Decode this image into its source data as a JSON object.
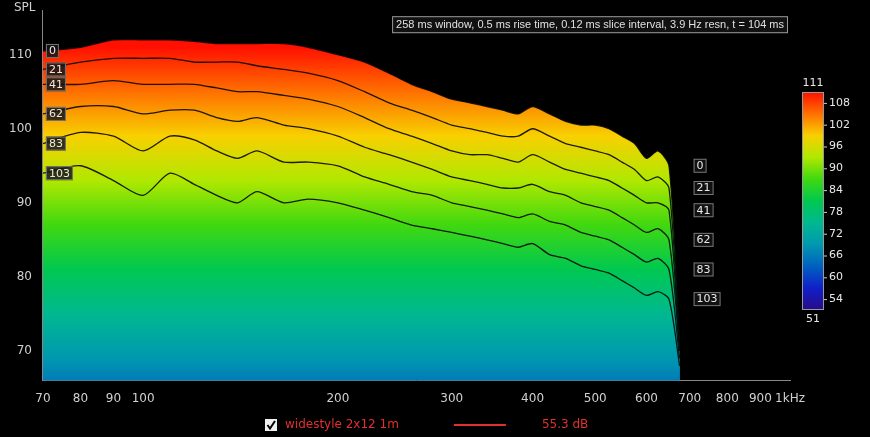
{
  "chart_data": {
    "type": "waterfall",
    "title": "258 ms window, 0.5 ms rise time, 0.12 ms slice interval, 3.9 Hz resn, t = 104 ms",
    "y_label": "SPL",
    "log": "x",
    "grid": false,
    "xlim": [
      70,
      1000
    ],
    "xticks": [
      70,
      80,
      90,
      100,
      200,
      300,
      400,
      500,
      600,
      700,
      800,
      900,
      {
        "value": 1000,
        "label": "1kHz"
      }
    ],
    "ylim": [
      66,
      116
    ],
    "yticks": [
      70,
      80,
      90,
      100,
      110
    ],
    "x": [
      70,
      80,
      90,
      100,
      110,
      120,
      130,
      140,
      150,
      165,
      180,
      200,
      220,
      240,
      260,
      280,
      300,
      320,
      340,
      360,
      380,
      400,
      425,
      450,
      475,
      500,
      525,
      550,
      575,
      600,
      625,
      650,
      675
    ],
    "slices": [
      {
        "t": 0,
        "values": [
          110.5,
          111,
          112,
          112,
          112,
          111.8,
          111.5,
          111.5,
          111.5,
          111.5,
          111,
          110,
          109,
          107.5,
          106,
          105,
          104,
          103.5,
          103,
          102.5,
          102,
          103,
          102,
          101,
          100.5,
          100.5,
          100,
          99,
          98,
          96,
          97,
          95,
          72
        ]
      },
      {
        "t": 21,
        "values": [
          108,
          109,
          109.5,
          109.5,
          109.5,
          109,
          109,
          109,
          108.5,
          108,
          107.5,
          106.5,
          105,
          103.5,
          102.5,
          101.5,
          100.5,
          100,
          99.5,
          99,
          99,
          100,
          99,
          98,
          97.5,
          97,
          96.5,
          95.5,
          94.5,
          93,
          93.5,
          92,
          71
        ]
      },
      {
        "t": 41,
        "values": [
          106,
          106,
          106.5,
          106,
          106,
          106,
          105.5,
          105,
          105,
          104.5,
          104,
          103,
          101.5,
          100,
          99,
          98,
          97,
          96.5,
          96.5,
          96,
          95.5,
          96.5,
          95.5,
          94.5,
          94,
          93.5,
          93,
          92,
          91,
          90,
          90,
          89,
          70
        ]
      },
      {
        "t": 62,
        "values": [
          102,
          103,
          103,
          102,
          102.5,
          102.5,
          101.5,
          101,
          101.5,
          100.5,
          100,
          99,
          97.5,
          96.5,
          95.5,
          94.5,
          93.5,
          93,
          92.5,
          92,
          92,
          92.5,
          91.5,
          91,
          90,
          89.5,
          89,
          88,
          87,
          86,
          86.5,
          85,
          70
        ]
      },
      {
        "t": 83,
        "values": [
          98,
          99.5,
          99,
          97,
          99,
          98.5,
          97,
          96,
          97,
          95.5,
          95.5,
          95,
          93.5,
          92.5,
          91.5,
          91,
          90,
          89.5,
          89,
          88.5,
          88,
          88.5,
          87.5,
          87,
          86,
          85.5,
          85,
          84,
          83,
          82,
          82.5,
          81,
          69
        ]
      },
      {
        "t": 103,
        "values": [
          94,
          95,
          93,
          91,
          94,
          92.5,
          91,
          90,
          91.5,
          90,
          90.5,
          90,
          89,
          88,
          87,
          86.5,
          86,
          85.5,
          85,
          84.5,
          84,
          84.5,
          83,
          82.5,
          81.5,
          81,
          80.5,
          79.5,
          78.5,
          77.5,
          78,
          77,
          68
        ]
      }
    ],
    "legend_entry": {
      "name": "widestyle 2x12 1m",
      "color": "#e03030",
      "text": "55.3 dB"
    },
    "color_bar": {
      "range": [
        51,
        111
      ],
      "ticks": [
        54,
        60,
        66,
        72,
        78,
        84,
        90,
        96,
        102,
        108
      ],
      "colors": [
        "#2a0a8a",
        "#1020c8",
        "#0060c0",
        "#0098b0",
        "#00b890",
        "#00c850",
        "#40d810",
        "#b0e800",
        "#f8d000",
        "#ff7000",
        "#ff1000"
      ]
    }
  }
}
